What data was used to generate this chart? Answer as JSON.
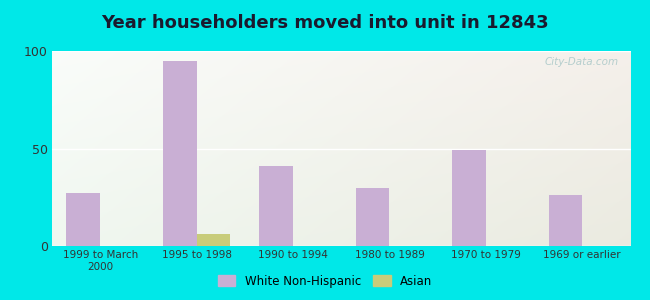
{
  "title": "Year householders moved into unit in 12843",
  "categories": [
    "1999 to March\n2000",
    "1995 to 1998",
    "1990 to 1994",
    "1980 to 1989",
    "1970 to 1979",
    "1969 or earlier"
  ],
  "white_non_hispanic": [
    27,
    95,
    41,
    30,
    49,
    26
  ],
  "asian": [
    0,
    6,
    0,
    0,
    0,
    0
  ],
  "bar_color_white": "#c9afd4",
  "bar_color_asian": "#c8cc7a",
  "background_outer": "#00e8e8",
  "ylim": [
    0,
    100
  ],
  "yticks": [
    0,
    50,
    100
  ],
  "bar_width": 0.35,
  "title_fontsize": 13,
  "watermark": "City-Data.com",
  "legend_label_white": "White Non-Hispanic",
  "legend_label_asian": "Asian"
}
